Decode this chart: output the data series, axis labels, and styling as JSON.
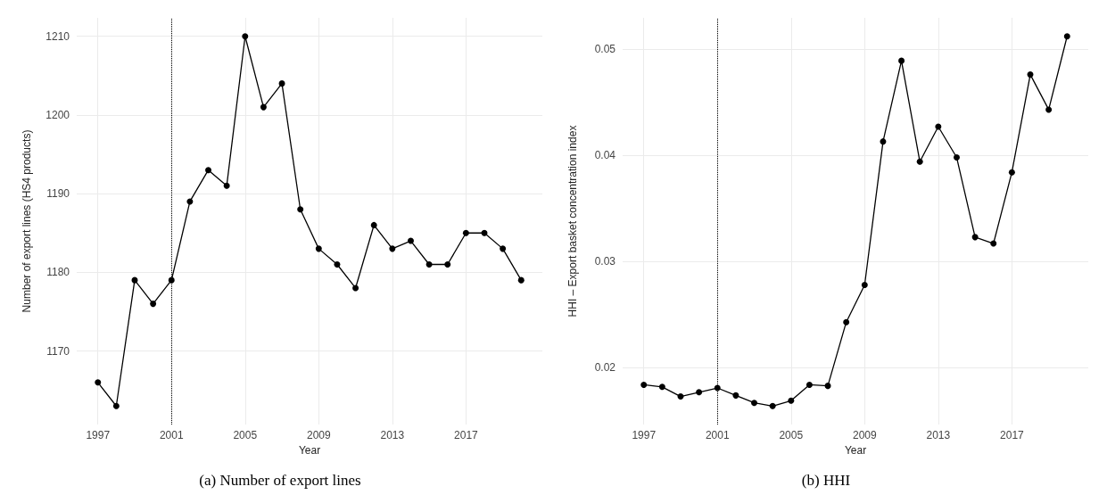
{
  "chart_data": [
    {
      "type": "line",
      "title": "(a) Number of export lines",
      "xlabel": "Year",
      "ylabel": "Number of export lines (HS4 products)",
      "x": [
        1997,
        1998,
        1999,
        2000,
        2001,
        2002,
        2003,
        2004,
        2005,
        2006,
        2007,
        2008,
        2009,
        2010,
        2011,
        2012,
        2013,
        2014,
        2015,
        2016,
        2017,
        2018,
        2019,
        2020
      ],
      "series": [
        {
          "color": "#000000",
          "values": [
            1166,
            1163,
            1179,
            1176,
            1179,
            1189,
            1193,
            1191,
            1210,
            1201,
            1204,
            1188,
            1183,
            1181,
            1178,
            1186,
            1183,
            1184,
            1181,
            1181,
            1185,
            1185,
            1183,
            1179
          ]
        }
      ],
      "xlim": [
        1995.85,
        2021.15
      ],
      "xticks": [
        1997,
        2001,
        2005,
        2009,
        2013,
        2017
      ],
      "ylim": [
        1160.65,
        1212.35
      ],
      "yticks": [
        1170,
        1180,
        1190,
        1200,
        1210
      ],
      "ref_lines": [
        {
          "axis": "x",
          "value": 2001,
          "color": "#000000",
          "line_style": "dotted"
        }
      ],
      "grid": true,
      "marker": "circle",
      "line_style": "solid"
    },
    {
      "type": "line",
      "title": "(b) HHI",
      "xlabel": "Year",
      "ylabel": "HHI – Export basket concentration index",
      "x": [
        1997,
        1998,
        1999,
        2000,
        2001,
        2002,
        2003,
        2004,
        2005,
        2006,
        2007,
        2008,
        2009,
        2010,
        2011,
        2012,
        2013,
        2014,
        2015,
        2016,
        2017,
        2018,
        2019,
        2020
      ],
      "series": [
        {
          "color": "#000000",
          "values": [
            0.0184,
            0.0182,
            0.0173,
            0.0177,
            0.0181,
            0.0174,
            0.0167,
            0.0164,
            0.0169,
            0.0184,
            0.0183,
            0.0243,
            0.0278,
            0.0413,
            0.0489,
            0.0394,
            0.0427,
            0.0398,
            0.0323,
            0.0317,
            0.0384,
            0.0476,
            0.0443,
            0.0512
          ]
        }
      ],
      "xlim": [
        1995.85,
        2021.15
      ],
      "xticks": [
        1997,
        2001,
        2005,
        2009,
        2013,
        2017
      ],
      "ylim": [
        0.01466,
        0.05294
      ],
      "yticks": [
        0.02,
        0.03,
        0.04,
        0.05
      ],
      "ref_lines": [
        {
          "axis": "x",
          "value": 2001,
          "color": "#000000",
          "line_style": "dotted"
        }
      ],
      "grid": true,
      "marker": "circle",
      "line_style": "solid"
    }
  ]
}
